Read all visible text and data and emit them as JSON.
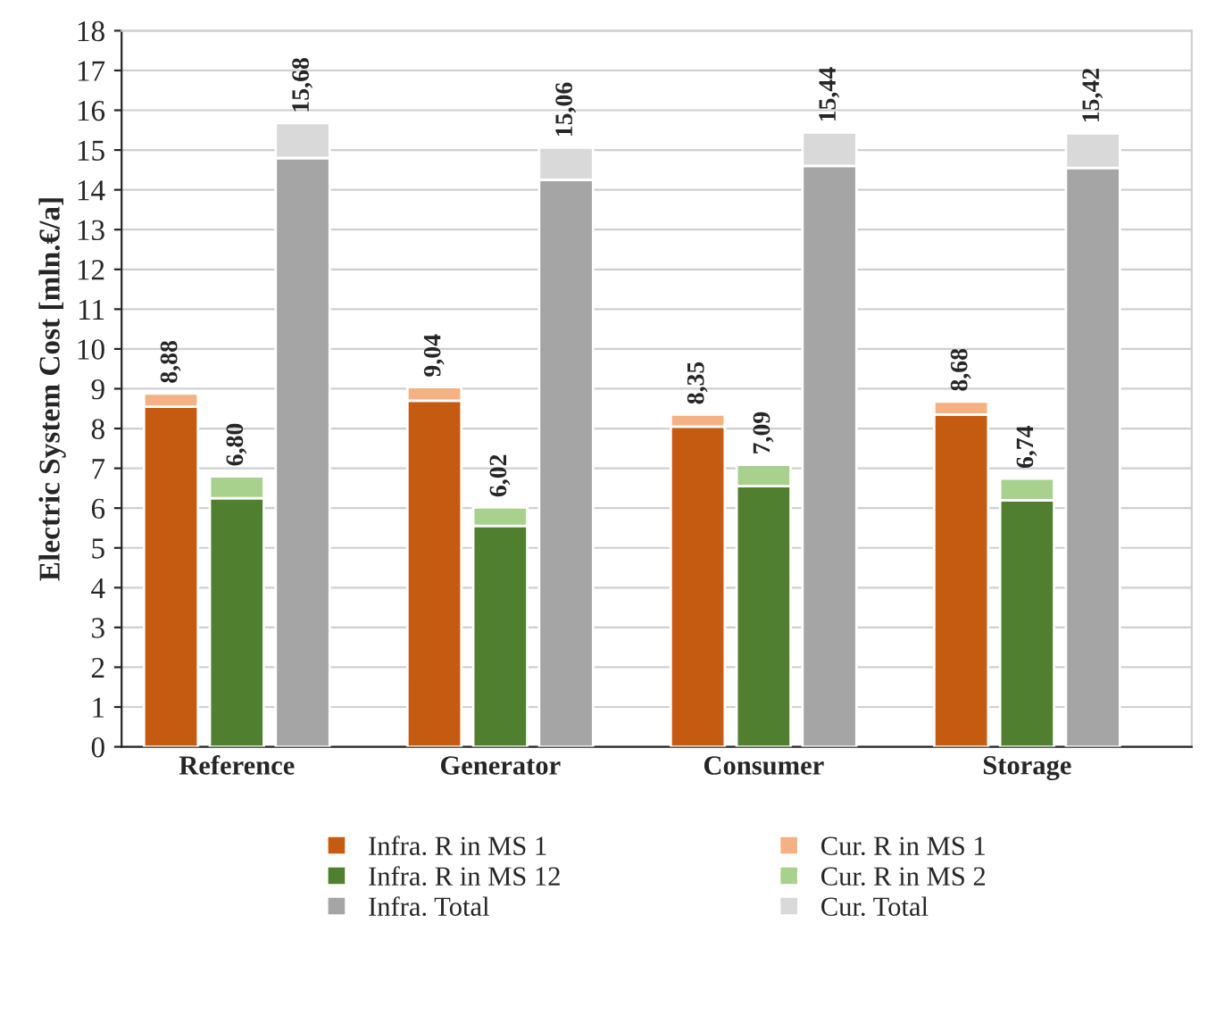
{
  "chart_data": {
    "type": "bar",
    "stacked": true,
    "ylabel": "Electric System Cost [mln.€/a]",
    "categories": [
      null,
      "Reference",
      null,
      null,
      null,
      "Generator",
      null,
      null,
      null,
      "Consumer",
      null,
      null,
      null,
      "Storage",
      null,
      null
    ],
    "series": [
      {
        "name": "Infra. R in MS 1",
        "color": "#c55a11",
        "values": [
          8.55,
          null,
          null,
          null,
          8.7,
          null,
          null,
          null,
          8.05,
          null,
          null,
          null,
          8.35,
          null,
          null,
          null
        ]
      },
      {
        "name": "Cur. R in MS 1",
        "color": "#f4b183",
        "values": [
          0.33,
          null,
          null,
          null,
          0.34,
          null,
          null,
          null,
          0.3,
          null,
          null,
          null,
          0.33,
          null,
          null,
          null
        ]
      },
      {
        "name": "Infra. R in MS 12",
        "color": "#4f7f2f",
        "values": [
          null,
          6.25,
          null,
          null,
          null,
          5.55,
          null,
          null,
          null,
          6.55,
          null,
          null,
          null,
          6.2,
          null,
          null
        ]
      },
      {
        "name": "Cur. R in MS 2",
        "color": "#a9d18e",
        "values": [
          null,
          0.55,
          null,
          null,
          null,
          0.47,
          null,
          null,
          null,
          0.54,
          null,
          null,
          null,
          0.54,
          null,
          null
        ]
      },
      {
        "name": "Infra. Total",
        "color": "#a5a5a5",
        "values": [
          null,
          null,
          14.8,
          null,
          null,
          null,
          14.25,
          null,
          null,
          null,
          14.6,
          null,
          null,
          null,
          14.55,
          null
        ]
      },
      {
        "name": "Cur. Total",
        "color": "#d9d9d9",
        "values": [
          null,
          null,
          0.88,
          null,
          null,
          null,
          0.81,
          null,
          null,
          null,
          0.84,
          null,
          null,
          null,
          0.87,
          null
        ]
      }
    ],
    "totals": [
      "8,88",
      "6,80",
      "15,68",
      null,
      "9,04",
      "6,02",
      "15,06",
      null,
      "8,35",
      "7,09",
      "15,44",
      null,
      "8,68",
      "6,74",
      "15,42",
      null
    ],
    "ylim": [
      0,
      18
    ],
    "yticks": [
      0,
      1,
      2,
      3,
      4,
      5,
      6,
      7,
      8,
      9,
      10,
      11,
      12,
      13,
      14,
      15,
      16,
      17,
      18
    ],
    "grid": "y",
    "legend": "bottom"
  }
}
